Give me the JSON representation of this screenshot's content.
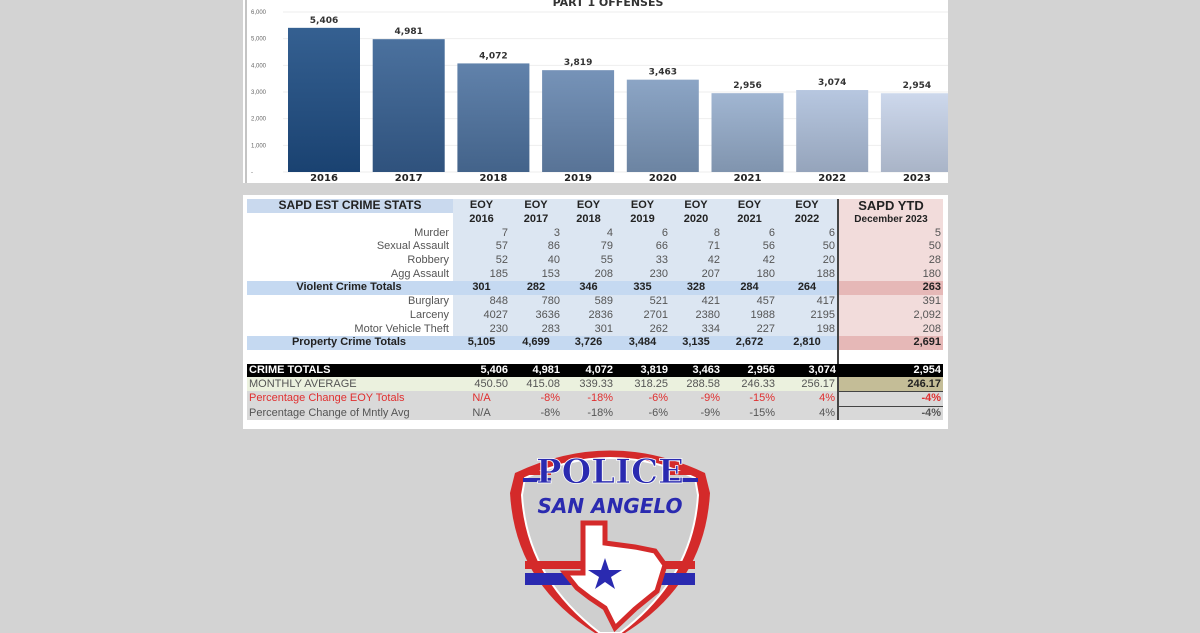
{
  "chart_data": {
    "type": "bar",
    "title": "PART 1 OFFENSES",
    "categories": [
      "2016",
      "2017",
      "2018",
      "2019",
      "2020",
      "2021",
      "2022",
      "2023"
    ],
    "values": [
      5406,
      4981,
      4072,
      3819,
      3463,
      2956,
      3074,
      2954
    ],
    "data_labels": [
      "5,406",
      "4,981",
      "4,072",
      "3,819",
      "3,463",
      "2,956",
      "3,074",
      "2,954"
    ],
    "ylim": [
      0,
      6000
    ],
    "yticks": [
      "-",
      "1,000",
      "2,000",
      "3,000",
      "4,000",
      "5,000",
      "6,000"
    ],
    "grid": true,
    "colors": {
      "dark": "#1f4e85",
      "light": "#c7d4ea"
    }
  },
  "table": {
    "title": "SAPD EST CRIME STATS",
    "columns": [
      {
        "top": "EOY",
        "bottom": "2016"
      },
      {
        "top": "EOY",
        "bottom": "2017"
      },
      {
        "top": "EOY",
        "bottom": "2018"
      },
      {
        "top": "EOY",
        "bottom": "2019"
      },
      {
        "top": "EOY",
        "bottom": "2020"
      },
      {
        "top": "EOY",
        "bottom": "2021"
      },
      {
        "top": "EOY",
        "bottom": "2022"
      },
      {
        "top": "SAPD YTD",
        "bottom": "December 2023"
      }
    ],
    "rows": [
      {
        "label": "Murder",
        "kind": "item",
        "values": [
          "7",
          "3",
          "4",
          "6",
          "8",
          "6",
          "6",
          "5"
        ]
      },
      {
        "label": "Sexual Assault",
        "kind": "item",
        "values": [
          "57",
          "86",
          "79",
          "66",
          "71",
          "56",
          "50",
          "50"
        ]
      },
      {
        "label": "Robbery",
        "kind": "item",
        "values": [
          "52",
          "40",
          "55",
          "33",
          "42",
          "42",
          "20",
          "28"
        ]
      },
      {
        "label": "Agg Assault",
        "kind": "item",
        "values": [
          "185",
          "153",
          "208",
          "230",
          "207",
          "180",
          "188",
          "180"
        ]
      },
      {
        "label": "Violent Crime Totals",
        "kind": "tot",
        "values": [
          "301",
          "282",
          "346",
          "335",
          "328",
          "284",
          "264",
          "263"
        ]
      },
      {
        "label": "Burglary",
        "kind": "item",
        "values": [
          "848",
          "780",
          "589",
          "521",
          "421",
          "457",
          "417",
          "391"
        ]
      },
      {
        "label": "Larceny",
        "kind": "item",
        "values": [
          "4027",
          "3636",
          "2836",
          "2701",
          "2380",
          "1988",
          "2195",
          "2,092"
        ]
      },
      {
        "label": "Motor Vehicle Theft",
        "kind": "item",
        "values": [
          "230",
          "283",
          "301",
          "262",
          "334",
          "227",
          "198",
          "208"
        ]
      },
      {
        "label": "Property Crime Totals",
        "kind": "tot",
        "values": [
          "5,105",
          "4,699",
          "3,726",
          "3,484",
          "3,135",
          "2,672",
          "2,810",
          "2,691"
        ]
      },
      {
        "label": "",
        "kind": "blank",
        "values": [
          "",
          "",
          "",
          "",
          "",
          "",
          "",
          ""
        ]
      },
      {
        "label": "CRIME TOTALS",
        "kind": "crime",
        "values": [
          "5,406",
          "4,981",
          "4,072",
          "3,819",
          "3,463",
          "2,956",
          "3,074",
          "2,954"
        ]
      },
      {
        "label": "MONTHLY AVERAGE",
        "kind": "avg",
        "values": [
          "450.50",
          "415.08",
          "339.33",
          "318.25",
          "288.58",
          "246.33",
          "256.17",
          "246.17"
        ]
      },
      {
        "label": "Percentage Change EOY Totals",
        "kind": "pct red",
        "values": [
          "N/A",
          "-8%",
          "-18%",
          "-6%",
          "-9%",
          "-15%",
          "4%",
          "-4%"
        ]
      },
      {
        "label": "Percentage Change of Mntly Avg",
        "kind": "pct",
        "values": [
          "N/A",
          "-8%",
          "-18%",
          "-6%",
          "-9%",
          "-15%",
          "4%",
          "-4%"
        ]
      }
    ]
  },
  "logo": {
    "top_text": "POLICE",
    "bottom_text": "SAN ANGELO"
  }
}
